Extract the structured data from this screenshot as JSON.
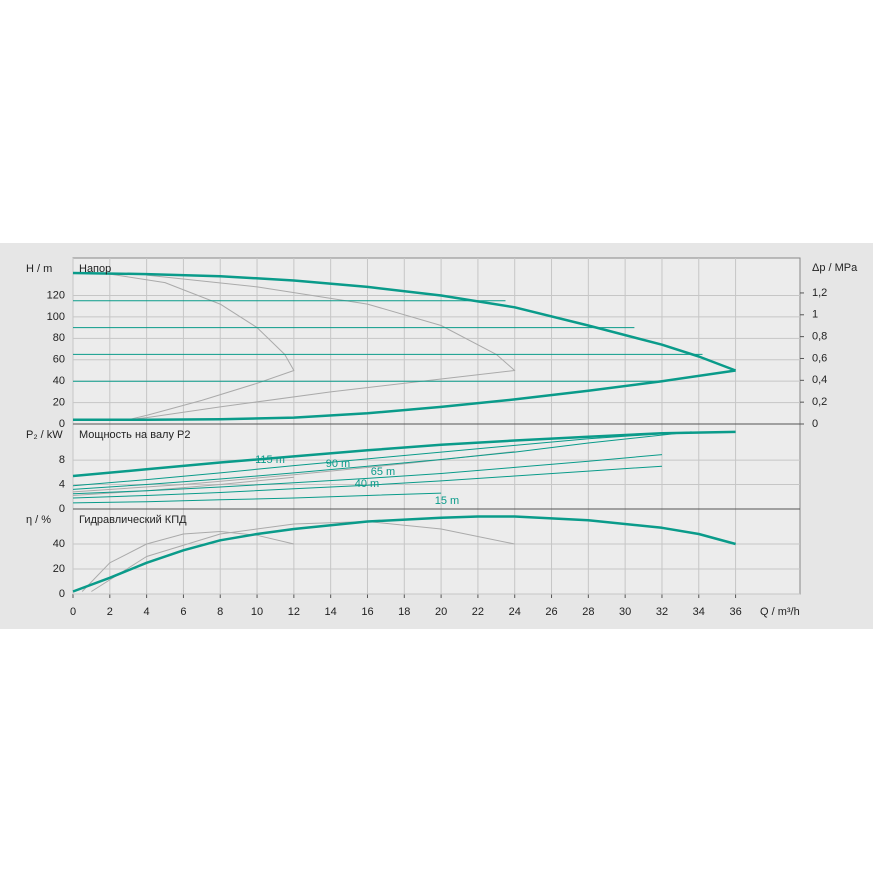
{
  "chart_data": [
    {
      "type": "line",
      "title": "Напор",
      "ylabel": "H / m",
      "y2label": "Δp / MPa",
      "ylim": [
        0,
        155
      ],
      "yticks": [
        0,
        20,
        40,
        60,
        80,
        100,
        120
      ],
      "y2lim": [
        0,
        1.52
      ],
      "y2ticks": [
        0,
        {
          "value": 0.2,
          "label": "0,2"
        },
        {
          "value": 0.4,
          "label": "0,4"
        },
        {
          "value": 0.6,
          "label": "0,6"
        },
        {
          "value": 0.8,
          "label": "0,8"
        },
        1,
        {
          "value": 1.2,
          "label": "1,2"
        }
      ],
      "grid": true,
      "series": [
        {
          "color": "#aaaaaa",
          "line_width": 1,
          "x": [
            2,
            5,
            8,
            10,
            11.5,
            12,
            10,
            7,
            4,
            3
          ],
          "values": [
            140,
            132,
            112,
            90,
            65,
            50,
            38,
            22,
            8,
            4
          ]
        },
        {
          "color": "#aaaaaa",
          "line_width": 1,
          "x": [
            4,
            10,
            16,
            20,
            23,
            24,
            20,
            14,
            8,
            4,
            3
          ],
          "values": [
            139,
            128,
            112,
            92,
            65,
            50,
            42,
            30,
            16,
            6,
            4
          ]
        },
        {
          "color": "#0a9b8a",
          "line_width": 1,
          "x": [
            0,
            23.5
          ],
          "values": [
            115,
            115
          ]
        },
        {
          "color": "#0a9b8a",
          "line_width": 1,
          "x": [
            0,
            30.5
          ],
          "values": [
            90,
            90
          ]
        },
        {
          "color": "#0a9b8a",
          "line_width": 1,
          "x": [
            0,
            34.2
          ],
          "values": [
            65,
            65
          ]
        },
        {
          "color": "#0a9b8a",
          "line_width": 1,
          "x": [
            0,
            32.2
          ],
          "values": [
            40,
            40
          ]
        },
        {
          "color": "#0a9b8a",
          "line_width": 2.5,
          "x": [
            0,
            4,
            8,
            12,
            16,
            20,
            24,
            28,
            32,
            34,
            36
          ],
          "values": [
            141,
            140,
            138,
            134,
            128,
            120,
            109,
            92,
            74,
            63,
            50
          ]
        },
        {
          "color": "#0a9b8a",
          "line_width": 2.5,
          "x": [
            0,
            4,
            8,
            12,
            16,
            20,
            24,
            28,
            32,
            36
          ],
          "values": [
            4,
            4,
            4.5,
            6,
            10,
            16,
            23,
            31,
            40,
            50
          ]
        }
      ]
    },
    {
      "type": "line",
      "title": "Мощность на валу P2",
      "ylabel": "P₂ / kW",
      "ylim": [
        0,
        13.9
      ],
      "yticks": [
        0,
        4,
        8
      ],
      "grid": true,
      "series": [
        {
          "color": "#aaaaaa",
          "line_width": 1,
          "x": [
            0,
            4,
            8,
            12
          ],
          "values": [
            2.2,
            3.0,
            4.0,
            5.2
          ]
        },
        {
          "color": "#aaaaaa",
          "line_width": 1,
          "x": [
            0,
            6,
            12,
            18,
            24
          ],
          "values": [
            2.8,
            4.0,
            5.6,
            7.4,
            9.4
          ]
        },
        {
          "color": "#0a9b8a",
          "line_width": 2.5,
          "x": [
            0,
            4,
            8,
            12,
            16,
            20,
            24,
            28,
            32,
            36
          ],
          "values": [
            5.4,
            6.5,
            7.6,
            8.6,
            9.6,
            10.5,
            11.2,
            11.8,
            12.4,
            12.6
          ]
        },
        {
          "name": "115 m",
          "color": "#0a9b8a",
          "line_width": 1,
          "x": [
            0,
            4,
            8,
            12,
            16,
            20,
            24,
            28,
            33.6
          ],
          "values": [
            3.8,
            4.8,
            5.9,
            7.1,
            8.2,
            9.3,
            10.4,
            11.5,
            12.6
          ]
        },
        {
          "name": "90 m",
          "color": "#0a9b8a",
          "line_width": 1,
          "x": [
            0,
            4,
            8,
            12,
            16,
            20,
            24,
            28,
            33.6
          ],
          "values": [
            3.2,
            4.0,
            4.9,
            5.9,
            7.0,
            8.1,
            9.3,
            10.8,
            12.6
          ]
        },
        {
          "name": "65 m",
          "color": "#0a9b8a",
          "line_width": 1,
          "x": [
            0,
            4,
            8,
            12,
            16,
            20,
            24,
            28,
            32
          ],
          "values": [
            2.5,
            3.0,
            3.6,
            4.3,
            5.0,
            5.8,
            6.8,
            7.8,
            8.9
          ]
        },
        {
          "name": "40 m",
          "color": "#0a9b8a",
          "line_width": 1,
          "x": [
            0,
            4,
            8,
            12,
            16,
            20,
            24,
            28,
            32
          ],
          "values": [
            1.8,
            2.2,
            2.7,
            3.3,
            3.9,
            4.6,
            5.4,
            6.2,
            7.0
          ]
        },
        {
          "name": "15 m",
          "color": "#0a9b8a",
          "line_width": 1,
          "x": [
            0,
            4,
            8,
            12,
            16,
            20
          ],
          "values": [
            1.0,
            1.2,
            1.5,
            1.8,
            2.2,
            2.6
          ]
        }
      ]
    },
    {
      "type": "line",
      "title": "Гидравлический КПД",
      "ylabel": "η / %",
      "xlabel": "Q / m³/h",
      "ylim": [
        0,
        68
      ],
      "yticks": [
        0,
        20,
        40
      ],
      "xlim": [
        0,
        39.5
      ],
      "xticks": [
        0,
        2,
        4,
        6,
        8,
        10,
        12,
        14,
        16,
        18,
        20,
        22,
        24,
        26,
        28,
        30,
        32,
        34,
        36
      ],
      "grid": true,
      "series": [
        {
          "color": "#aaaaaa",
          "line_width": 1,
          "x": [
            0.5,
            2,
            4,
            6,
            8,
            10,
            12
          ],
          "values": [
            2,
            25,
            40,
            48,
            50,
            47,
            40
          ]
        },
        {
          "color": "#aaaaaa",
          "line_width": 1,
          "x": [
            1,
            4,
            8,
            12,
            16,
            20,
            24
          ],
          "values": [
            2,
            30,
            48,
            56,
            58,
            52,
            40
          ]
        },
        {
          "color": "#0a9b8a",
          "line_width": 2.5,
          "x": [
            0,
            2,
            4,
            6,
            8,
            10,
            12,
            16,
            20,
            22,
            24,
            28,
            32,
            34,
            36
          ],
          "values": [
            2,
            13,
            25,
            35,
            43,
            48,
            52,
            58,
            61,
            62,
            62,
            59,
            53,
            48,
            40
          ]
        }
      ]
    }
  ]
}
